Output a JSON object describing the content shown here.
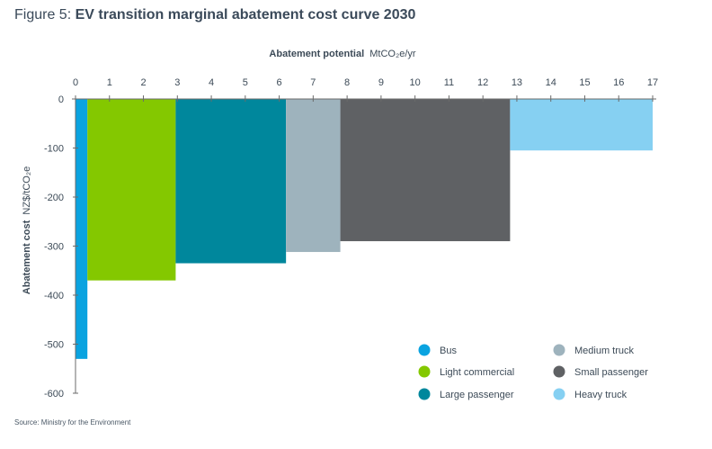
{
  "figure": {
    "prefix": "Figure 5: ",
    "title": "EV transition marginal abatement cost curve 2030",
    "source": "Source: Ministry for the Environment"
  },
  "chart_data": {
    "type": "bar",
    "subtype": "marginal-abatement-cost-curve",
    "title": "EV transition marginal abatement cost curve 2030",
    "xlabel": "Abatement potential",
    "xlabel_unit": "MtCO₂e/yr",
    "ylabel": "Abatement cost",
    "ylabel_unit": "NZ$/tCO₂e",
    "xlim": [
      0,
      17
    ],
    "ylim": [
      -600,
      0
    ],
    "x_ticks": [
      0,
      1,
      2,
      3,
      4,
      5,
      6,
      7,
      8,
      9,
      10,
      11,
      12,
      13,
      14,
      15,
      16,
      17
    ],
    "y_ticks": [
      0,
      -100,
      -200,
      -300,
      -400,
      -500,
      -600
    ],
    "x_axis_position": "top",
    "grid": false,
    "legend_position": "bottom-right",
    "series": [
      {
        "name": "Bus",
        "x_start": 0,
        "x_end": 0.35,
        "value": -530,
        "color": "#0aa3e0"
      },
      {
        "name": "Light commercial",
        "x_start": 0.35,
        "x_end": 2.95,
        "value": -370,
        "color": "#84c800"
      },
      {
        "name": "Large passenger",
        "x_start": 2.95,
        "x_end": 6.2,
        "value": -335,
        "color": "#00879c"
      },
      {
        "name": "Medium truck",
        "x_start": 6.2,
        "x_end": 7.8,
        "value": -312,
        "color": "#9eb3bd"
      },
      {
        "name": "Small passenger",
        "x_start": 7.8,
        "x_end": 12.8,
        "value": -290,
        "color": "#5f6164"
      },
      {
        "name": "Heavy truck",
        "x_start": 12.8,
        "x_end": 17,
        "value": -105,
        "color": "#86d0f2"
      }
    ],
    "legend_order": [
      "Bus",
      "Medium truck",
      "Light commercial",
      "Small passenger",
      "Large passenger",
      "Heavy truck"
    ]
  }
}
